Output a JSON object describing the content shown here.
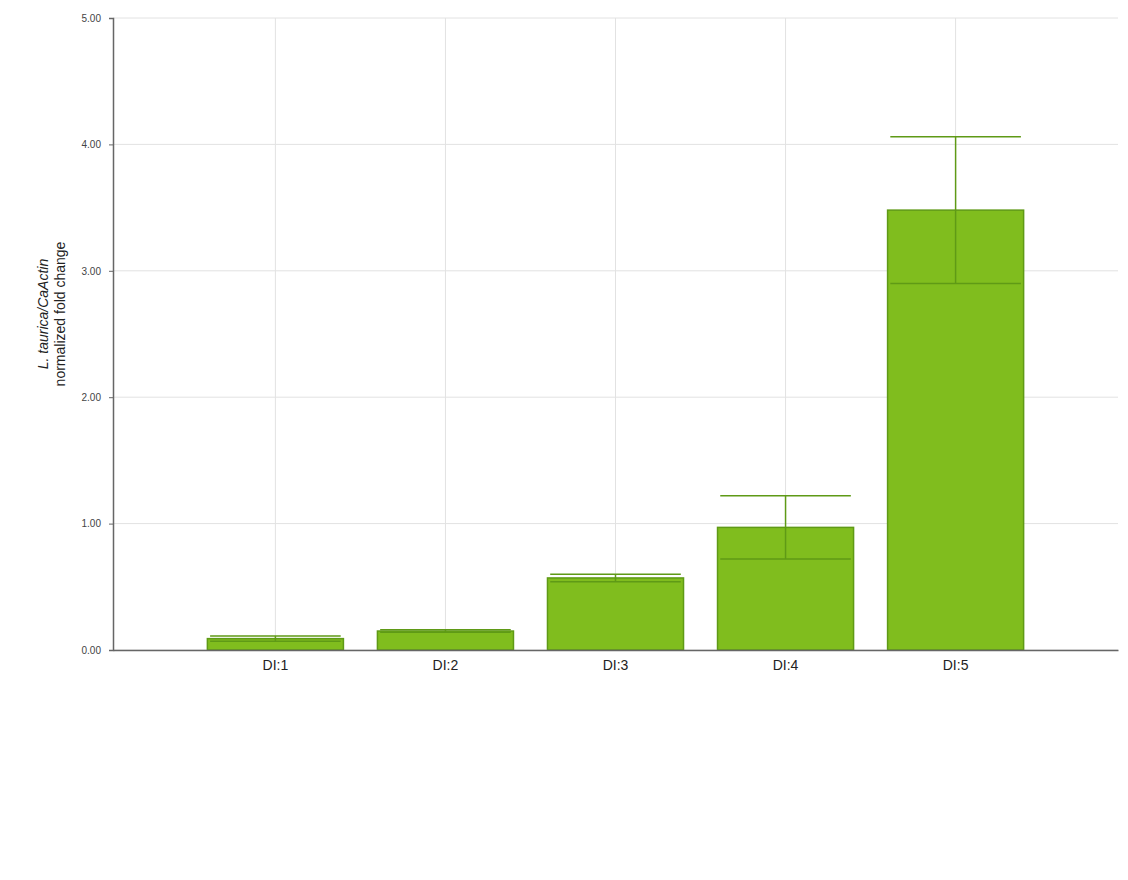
{
  "chart_data": {
    "type": "bar",
    "y_label": [
      "L. taurica/CaActin",
      "normalized fold change"
    ],
    "categories": [
      "DI:1",
      "DI:2",
      "DI:3",
      "DI:4",
      "DI:5"
    ],
    "values": [
      0.09,
      0.15,
      0.57,
      0.97,
      3.48
    ],
    "errors": [
      0.02,
      0.01,
      0.03,
      0.25,
      0.58
    ],
    "color": "#80bd1e",
    "ylim": [
      0,
      5
    ],
    "yticks": [
      {
        "value": 0,
        "label": "0.00"
      },
      {
        "value": 1,
        "label": "1.00"
      },
      {
        "value": 2,
        "label": "2.00"
      },
      {
        "value": 3,
        "label": "3.00"
      },
      {
        "value": 4,
        "label": "4.00"
      },
      {
        "value": 5,
        "label": "5.00"
      }
    ],
    "grid": true
  }
}
